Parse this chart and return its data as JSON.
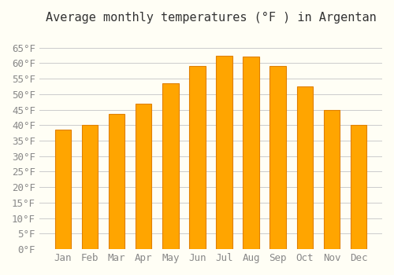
{
  "title": "Average monthly temperatures (°F ) in Argentan",
  "months": [
    "Jan",
    "Feb",
    "Mar",
    "Apr",
    "May",
    "Jun",
    "Jul",
    "Aug",
    "Sep",
    "Oct",
    "Nov",
    "Dec"
  ],
  "values": [
    38.5,
    40.0,
    43.5,
    47.0,
    53.5,
    59.0,
    62.5,
    62.0,
    59.0,
    52.5,
    45.0,
    40.0
  ],
  "bar_color": "#FFA500",
  "bar_edge_color": "#E08000",
  "background_color": "#FFFEF5",
  "grid_color": "#CCCCCC",
  "ylim": [
    0,
    70
  ],
  "yticks": [
    0,
    5,
    10,
    15,
    20,
    25,
    30,
    35,
    40,
    45,
    50,
    55,
    60,
    65
  ],
  "title_fontsize": 11,
  "tick_fontsize": 9,
  "font_family": "monospace"
}
